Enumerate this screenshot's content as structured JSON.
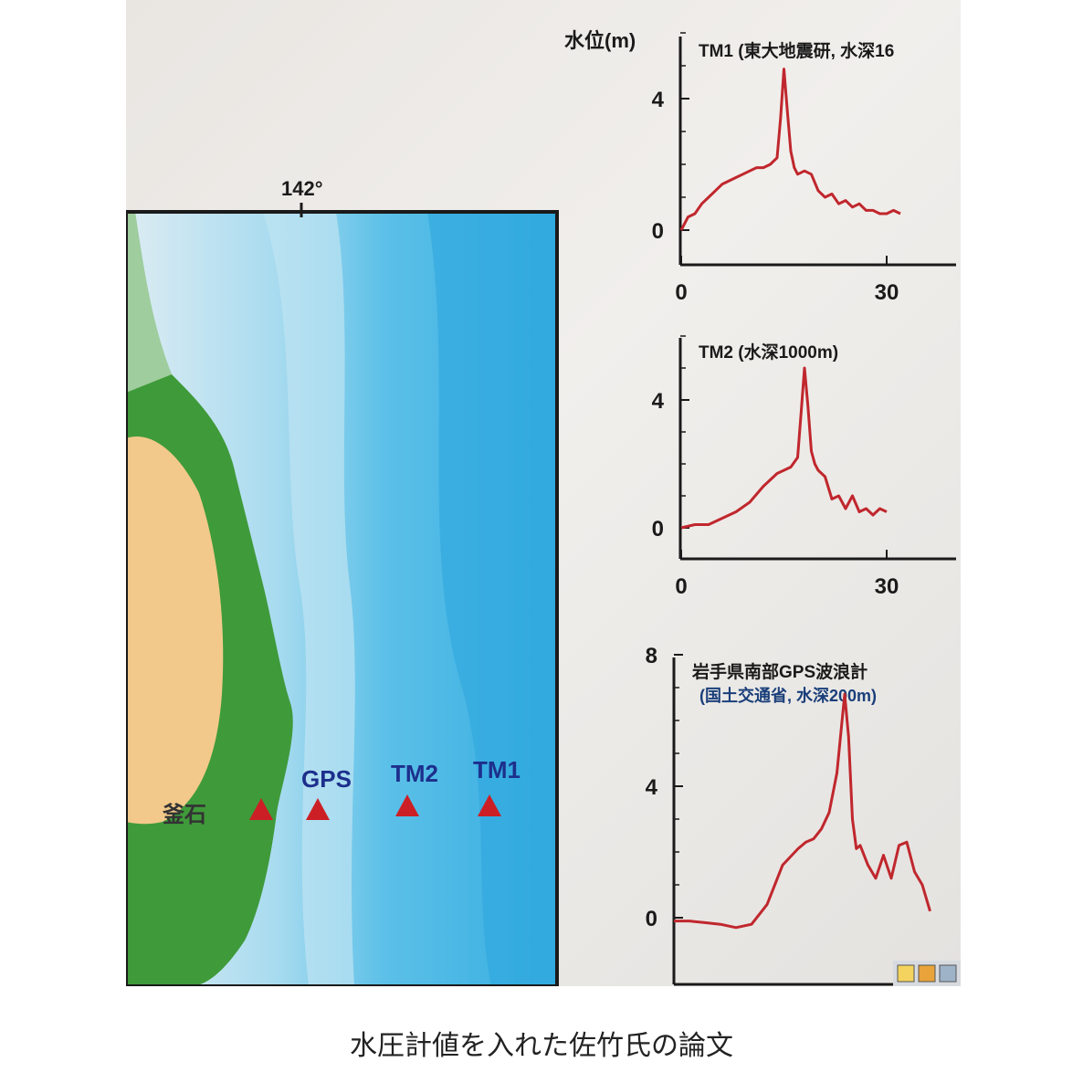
{
  "caption": "水圧計値を入れた佐竹氏の論文",
  "map": {
    "longitude_label": "142°",
    "stations": [
      {
        "label": "釜石"
      },
      {
        "label": "GPS"
      },
      {
        "label": "TM2"
      },
      {
        "label": "TM1"
      }
    ],
    "colors": {
      "land_green": "#3f9a3a",
      "land_orange": "#f2c98a",
      "shelf": "#dcecf3",
      "slope": "#8fd0ea",
      "deep": "#3fb4e3",
      "marker": "#cc1f25",
      "label_blue": "#1d2f8c"
    }
  },
  "chart_data": [
    {
      "type": "line",
      "ylabel": "水位(m)",
      "title": "TM1 (東大地震研, 水深16",
      "xlim": [
        0,
        40
      ],
      "ylim": [
        -1,
        7
      ],
      "xticks": [
        0,
        30
      ],
      "yticks": [
        0,
        4
      ],
      "color": "#c0272d",
      "series": [
        {
          "x": [
            0,
            1,
            2,
            3,
            4,
            5,
            6,
            7,
            8,
            9,
            10,
            11,
            12,
            13,
            14,
            14.5,
            15,
            15.5,
            16,
            16.5,
            17,
            18,
            19,
            20,
            21,
            22,
            23,
            24,
            25,
            26,
            27,
            28,
            29,
            30,
            31,
            32
          ],
          "y": [
            0,
            0.4,
            0.5,
            0.8,
            1.0,
            1.2,
            1.4,
            1.5,
            1.6,
            1.7,
            1.8,
            1.9,
            1.9,
            2.0,
            2.2,
            3.4,
            4.9,
            3.6,
            2.4,
            1.9,
            1.7,
            1.8,
            1.7,
            1.2,
            1.0,
            1.1,
            0.8,
            0.9,
            0.7,
            0.8,
            0.6,
            0.6,
            0.5,
            0.5,
            0.6,
            0.5
          ]
        }
      ]
    },
    {
      "type": "line",
      "title": "TM2 (水深1000m)",
      "xlim": [
        0,
        40
      ],
      "ylim": [
        -1,
        7
      ],
      "xticks": [
        0,
        30
      ],
      "yticks": [
        0,
        4
      ],
      "color": "#c0272d",
      "series": [
        {
          "x": [
            0,
            2,
            4,
            6,
            8,
            10,
            12,
            13,
            14,
            15,
            16,
            17,
            17.5,
            18,
            18.5,
            19,
            19.5,
            20,
            21,
            22,
            23,
            24,
            25,
            26,
            27,
            28,
            29,
            30
          ],
          "y": [
            0,
            0.1,
            0.1,
            0.3,
            0.5,
            0.8,
            1.3,
            1.5,
            1.7,
            1.8,
            1.9,
            2.2,
            3.6,
            5.0,
            3.8,
            2.4,
            2.0,
            1.8,
            1.6,
            0.9,
            1.0,
            0.6,
            1.0,
            0.5,
            0.6,
            0.4,
            0.6,
            0.5
          ]
        }
      ]
    },
    {
      "type": "line",
      "title": "岩手県南部GPS波浪計",
      "subtitle": "(国土交通省, 水深200m)",
      "xlim": [
        0,
        40
      ],
      "ylim": [
        -1,
        8.5
      ],
      "yticks": [
        0,
        4,
        8
      ],
      "color": "#c0272d",
      "series": [
        {
          "x": [
            0,
            2,
            4,
            6,
            8,
            10,
            12,
            14,
            16,
            17,
            18,
            19,
            20,
            21,
            22,
            22.5,
            23,
            23.5,
            24,
            25,
            26,
            27,
            28,
            29,
            30,
            31,
            32,
            33
          ],
          "y": [
            -0.1,
            -0.1,
            -0.15,
            -0.2,
            -0.3,
            -0.2,
            0.4,
            1.6,
            2.1,
            2.3,
            2.4,
            2.7,
            3.2,
            4.4,
            6.8,
            5.5,
            3.0,
            2.1,
            2.2,
            1.6,
            1.2,
            1.9,
            1.2,
            2.2,
            2.3,
            1.4,
            1.0,
            0.2
          ]
        }
      ]
    }
  ],
  "ui": {
    "dock_icons": [
      "window-icon",
      "folder-icon",
      "window-icon"
    ]
  }
}
